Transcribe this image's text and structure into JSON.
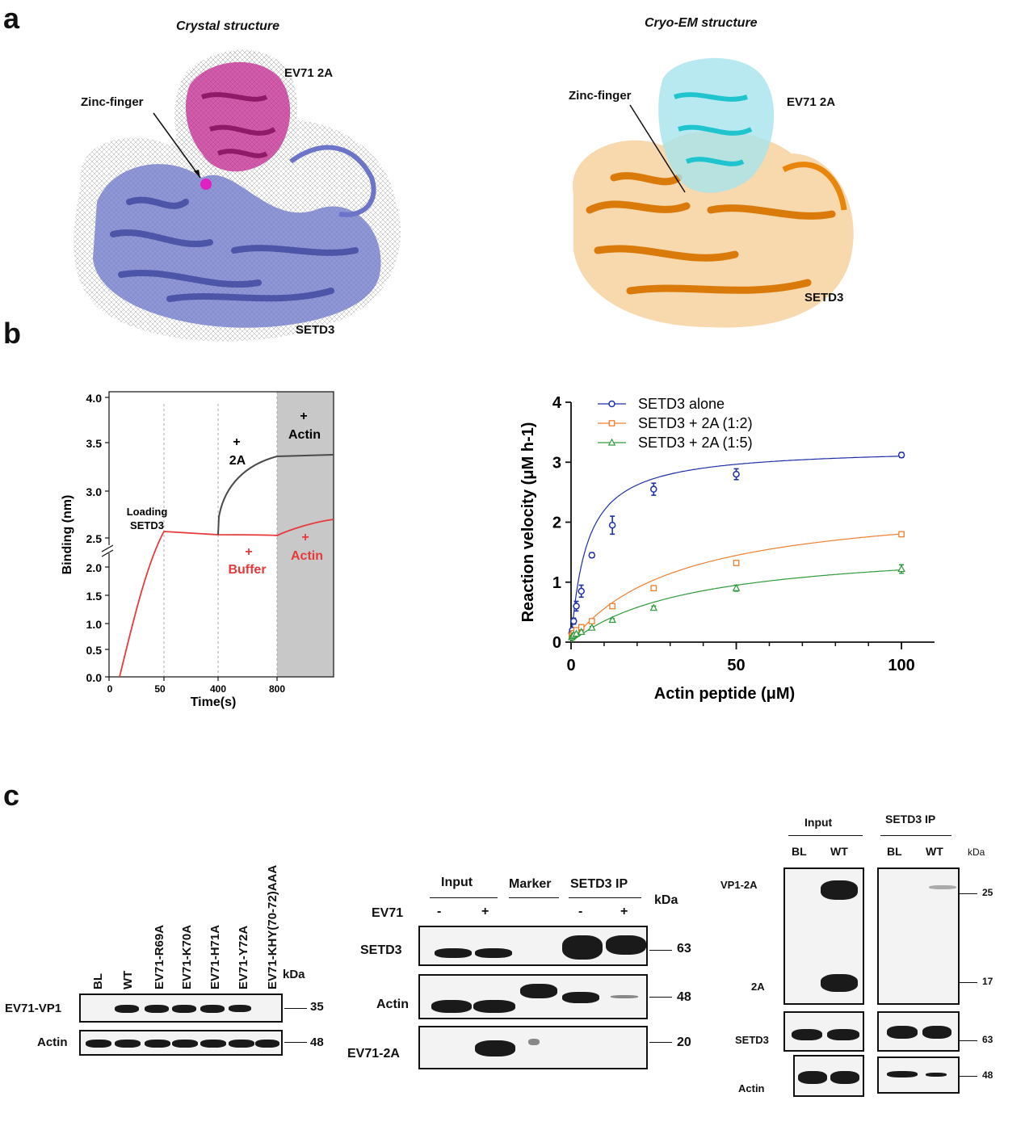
{
  "panel_letters": {
    "a": "a",
    "b": "b",
    "c": "c"
  },
  "panel_a": {
    "left_title": "Crystal structure",
    "right_title": "Cryo-EM structure",
    "left_labels": {
      "protein_top": "EV71 2A",
      "zinc": "Zinc-finger",
      "protein_bottom": "SETD3"
    },
    "right_labels": {
      "protein_top": "EV71 2A",
      "zinc": "Zinc-finger",
      "protein_bottom": "SETD3"
    },
    "colors": {
      "crystal_2a": "#c2268f",
      "crystal_setd3": "#6b74c9",
      "em_2a": "#1fc4cf",
      "em_setd3": "#e8860c"
    }
  },
  "bli_chart": {
    "type": "line",
    "ylabel": "Binding (nm)",
    "xlabel": "Time(s)",
    "x_tick_labels": [
      "0",
      "50",
      "400",
      "800"
    ],
    "y_tick_labels_upper": [
      "4.0",
      "3.5",
      "3.0",
      "2.5"
    ],
    "y_tick_labels_lower": [
      "2.0",
      "1.5",
      "1.0",
      "0.5",
      "0.0"
    ],
    "annotations": {
      "loading": [
        "Loading",
        "SETD3"
      ],
      "plus": "+",
      "add_2a": "2A",
      "add_actin_gray": "Actin",
      "buffer": "Buffer",
      "add_actin_red": "Actin"
    },
    "series": [
      {
        "name": "2A then Actin",
        "color": "#4a4a4a"
      },
      {
        "name": "Buffer then Actin",
        "color": "#e8383a"
      }
    ]
  },
  "chart_data": {
    "type": "scatter",
    "title": "",
    "xlabel": "Actin peptide (μM)",
    "ylabel": "Reaction velocity (μM h-1)",
    "xlim": [
      0,
      110
    ],
    "ylim": [
      0,
      4
    ],
    "x_ticks": [
      "0",
      "50",
      "100"
    ],
    "y_ticks": [
      "0",
      "1",
      "2",
      "3",
      "4"
    ],
    "x": [
      0.2,
      0.4,
      0.8,
      1.6,
      3.1,
      6.3,
      12.5,
      25,
      50,
      100
    ],
    "series": [
      {
        "name": "SETD3 alone",
        "color": "#1f2fa8",
        "marker": "circle",
        "values": [
          0.15,
          0.2,
          0.35,
          0.6,
          0.85,
          1.45,
          1.95,
          2.55,
          2.8,
          3.12
        ],
        "errors": [
          0.03,
          0.03,
          0.05,
          0.08,
          0.1,
          0.04,
          0.15,
          0.1,
          0.09,
          0.04
        ]
      },
      {
        "name": "SETD3 + 2A (1:2)",
        "color": "#f07f2e",
        "marker": "square",
        "values": [
          0.1,
          0.12,
          0.15,
          0.2,
          0.25,
          0.35,
          0.6,
          0.9,
          1.32,
          1.8
        ],
        "errors": [
          0.01,
          0.01,
          0.01,
          0.02,
          0.02,
          0.02,
          0.03,
          0.04,
          0.04,
          0.04
        ]
      },
      {
        "name": "SETD3 + 2A (1:5)",
        "color": "#2e9a3a",
        "marker": "triangle",
        "values": [
          0.08,
          0.1,
          0.12,
          0.14,
          0.17,
          0.24,
          0.37,
          0.57,
          0.9,
          1.22
        ],
        "errors": [
          0.01,
          0.01,
          0.01,
          0.01,
          0.02,
          0.02,
          0.02,
          0.03,
          0.05,
          0.07
        ]
      }
    ]
  },
  "panel_c": {
    "blot1": {
      "lanes": [
        "BL",
        "WT",
        "EV71-R69A",
        "EV71-K70A",
        "EV71-H71A",
        "EV71-Y72A",
        "EV71-KHY(70-72)AAA"
      ],
      "kda": "kDa",
      "rows": [
        {
          "label": "EV71-VP1",
          "mw": "35"
        },
        {
          "label": "Actin",
          "mw": "48"
        }
      ]
    },
    "blot2": {
      "groups": [
        "Input",
        "Marker",
        "SETD3 IP"
      ],
      "ev71_label": "EV71",
      "lane_signs": [
        "-",
        "+",
        "-",
        "+"
      ],
      "kda": "kDa",
      "rows": [
        {
          "label": "SETD3",
          "mw": "63"
        },
        {
          "label": "Actin",
          "mw": "48"
        },
        {
          "label": "EV71-2A",
          "mw": "20"
        }
      ]
    },
    "blot3": {
      "groups": [
        "Input",
        "SETD3 IP"
      ],
      "lanes": [
        "BL",
        "WT",
        "BL",
        "WT"
      ],
      "kda": "kDa",
      "top_labels": [
        "VP1-2A",
        "2A"
      ],
      "top_mw": [
        "25",
        "17"
      ],
      "rows": [
        {
          "label": "SETD3",
          "mw": "63"
        },
        {
          "label": "Actin",
          "mw": "48"
        }
      ]
    }
  }
}
